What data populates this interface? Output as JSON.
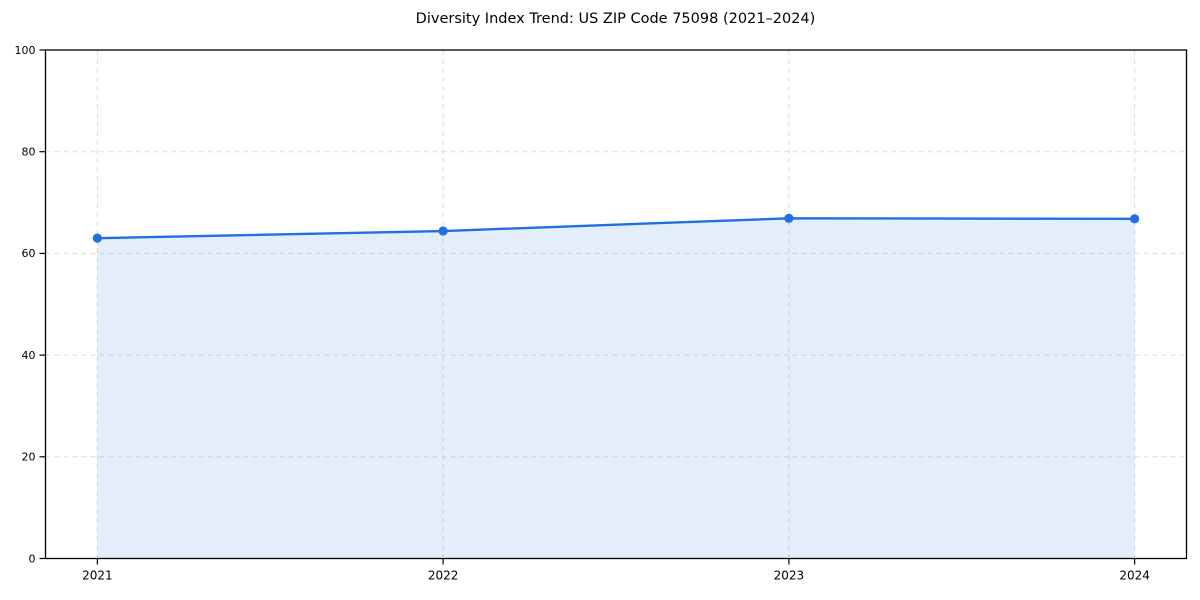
{
  "chart_data": {
    "type": "area",
    "title": "Diversity Index Trend: US ZIP Code 75098 (2021–2024)",
    "x": [
      2021,
      2022,
      2023,
      2024
    ],
    "x_tick_labels": [
      "2021",
      "2022",
      "2023",
      "2024"
    ],
    "series": [
      {
        "name": "Diversity Index",
        "values": [
          63.0,
          64.4,
          66.9,
          66.8
        ]
      }
    ],
    "xlabel": "",
    "ylabel": "",
    "ylim": [
      0,
      100
    ],
    "yticks": [
      0,
      20,
      40,
      60,
      80,
      100
    ],
    "x_margin_frac": 0.05,
    "grid": true,
    "grid_style": "dashed",
    "legend": "none",
    "marker": "circle",
    "colors": {
      "line": "#2070df",
      "marker": "#2070df",
      "fill": "rgba(32,112,223,0.12)",
      "grid": "#dcdcdc",
      "axis": "#000000",
      "text": "#000000",
      "background": "#ffffff"
    }
  }
}
